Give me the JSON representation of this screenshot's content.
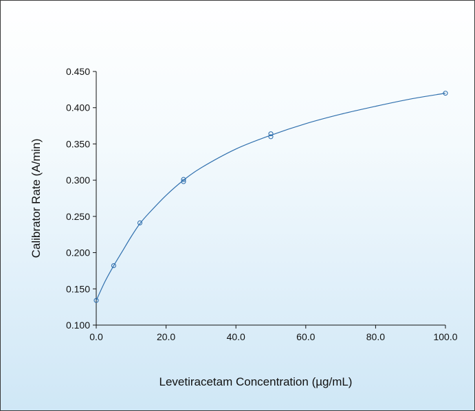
{
  "chart_data": {
    "type": "scatter",
    "title": "",
    "xlabel": "Levetiracetam Concentration (µg/mL)",
    "ylabel": "Calibrator Rate (A/min)",
    "xlim": [
      0,
      100
    ],
    "ylim": [
      0.1,
      0.45
    ],
    "x_ticks": [
      "0.0",
      "20.0",
      "40.0",
      "60.0",
      "80.0",
      "100.0"
    ],
    "y_ticks": [
      "0.100",
      "0.150",
      "0.200",
      "0.250",
      "0.300",
      "0.350",
      "0.400",
      "0.450"
    ],
    "grid": false,
    "legend": "none",
    "marker_color": "#2f6fad",
    "curve_color": "#2f6fad",
    "points": [
      {
        "x": 0,
        "y": 0.134
      },
      {
        "x": 5,
        "y": 0.182
      },
      {
        "x": 12.5,
        "y": 0.241
      },
      {
        "x": 25,
        "y": 0.301
      },
      {
        "x": 25,
        "y": 0.298
      },
      {
        "x": 50,
        "y": 0.364
      },
      {
        "x": 50,
        "y": 0.36
      },
      {
        "x": 100,
        "y": 0.42
      }
    ],
    "fit_curve": {
      "x": [
        0,
        2.5,
        5,
        7.5,
        10,
        12.5,
        15,
        20,
        25,
        30,
        40,
        50,
        60,
        70,
        80,
        90,
        100
      ],
      "y": [
        0.134,
        0.16,
        0.182,
        0.202,
        0.222,
        0.24,
        0.254,
        0.279,
        0.3,
        0.317,
        0.343,
        0.362,
        0.378,
        0.391,
        0.402,
        0.412,
        0.42
      ]
    }
  }
}
